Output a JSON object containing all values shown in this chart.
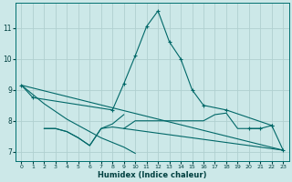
{
  "xlabel": "Humidex (Indice chaleur)",
  "bg_color": "#cce8e8",
  "grid_color": "#b0d0d0",
  "line_color": "#006868",
  "xlim": [
    -0.5,
    23.5
  ],
  "ylim": [
    6.7,
    11.8
  ],
  "yticks": [
    7,
    8,
    9,
    10,
    11
  ],
  "xticks": [
    0,
    1,
    2,
    3,
    4,
    5,
    6,
    7,
    8,
    9,
    10,
    11,
    12,
    13,
    14,
    15,
    16,
    17,
    18,
    19,
    20,
    21,
    22,
    23
  ],
  "series": [
    {
      "x": [
        0,
        1,
        8,
        9,
        10,
        11,
        12,
        13,
        14,
        15,
        16,
        18,
        22
      ],
      "y": [
        9.15,
        8.75,
        8.35,
        9.2,
        10.1,
        11.05,
        11.55,
        10.55,
        10.0,
        9.0,
        8.5,
        8.35,
        7.85
      ],
      "has_markers": true
    },
    {
      "x": [
        2,
        3,
        4,
        5,
        6,
        7,
        8,
        9,
        10,
        11,
        12,
        13,
        14,
        15,
        16,
        17,
        18,
        19,
        20,
        21
      ],
      "y": [
        7.75,
        7.75,
        7.65,
        7.45,
        7.2,
        7.75,
        7.8,
        7.75,
        8.0,
        8.0,
        8.0,
        8.0,
        8.0,
        8.0,
        8.0,
        8.2,
        8.25,
        7.75,
        7.75,
        7.75
      ],
      "has_markers": false
    },
    {
      "x": [
        2,
        3,
        4,
        5,
        6,
        7,
        8,
        9
      ],
      "y": [
        7.75,
        7.75,
        7.65,
        7.45,
        7.2,
        7.75,
        7.9,
        8.2
      ],
      "has_markers": false
    },
    {
      "x": [
        0,
        1,
        2,
        3,
        4,
        5,
        6,
        7,
        8,
        9,
        10
      ],
      "y": [
        9.15,
        8.85,
        8.55,
        8.3,
        8.05,
        7.85,
        7.65,
        7.45,
        7.3,
        7.15,
        6.95
      ],
      "has_markers": false
    },
    {
      "x": [
        20,
        21,
        22,
        23
      ],
      "y": [
        7.75,
        7.75,
        7.85,
        7.05
      ],
      "has_markers": true
    },
    {
      "x": [
        0,
        23
      ],
      "y": [
        9.15,
        7.05
      ],
      "has_markers": false
    },
    {
      "x": [
        9,
        10,
        11,
        12,
        13,
        14,
        15,
        16,
        17,
        18,
        19,
        20,
        21,
        22,
        23
      ],
      "y": [
        7.75,
        7.7,
        7.65,
        7.6,
        7.55,
        7.5,
        7.45,
        7.4,
        7.35,
        7.3,
        7.25,
        7.2,
        7.15,
        7.1,
        7.05
      ],
      "has_markers": false
    }
  ]
}
